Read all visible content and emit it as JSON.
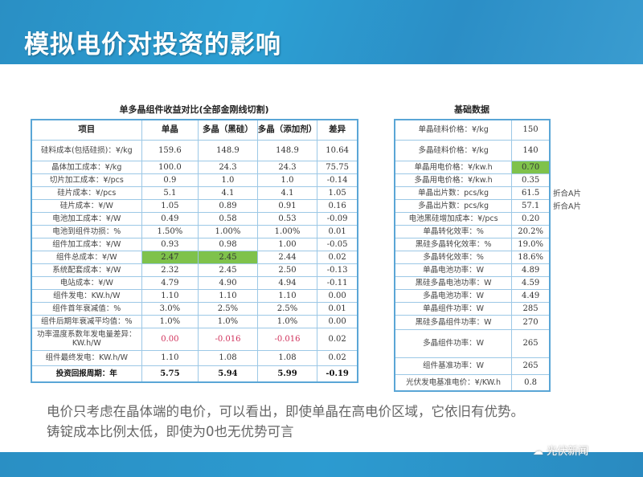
{
  "title": "模拟电价对投资的影响",
  "left_table": {
    "caption": "单多晶组件收益对比(全部金刚线切割)",
    "headers": [
      "项目",
      "单晶",
      "多晶（黑硅）",
      "多晶（添加剂）",
      "差异"
    ],
    "rows": [
      [
        "硅料成本(包括硅损)：¥/kg",
        "159.6",
        "148.9",
        "148.9",
        "10.64"
      ],
      [
        "晶体加工成本：¥/kg",
        "100.0",
        "24.3",
        "24.3",
        "75.75"
      ],
      [
        "切片加工成本：¥/pcs",
        "0.9",
        "1.0",
        "1.0",
        "-0.14"
      ],
      [
        "硅片成本：¥/pcs",
        "5.1",
        "4.1",
        "4.1",
        "1.05"
      ],
      [
        "硅片成本：¥/W",
        "1.05",
        "0.89",
        "0.91",
        "0.16"
      ],
      [
        "电池加工成本：¥/W",
        "0.49",
        "0.58",
        "0.53",
        "-0.09"
      ],
      [
        "电池到组件功损：%",
        "1.50%",
        "1.00%",
        "1.00%",
        "0.01"
      ],
      [
        "组件加工成本：¥/W",
        "0.93",
        "0.98",
        "1.00",
        "-0.05"
      ],
      [
        "组件总成本：¥/W",
        "2.47",
        "2.45",
        "2.44",
        "0.02"
      ],
      [
        "系统配套成本：¥/W",
        "2.32",
        "2.45",
        "2.50",
        "-0.13"
      ],
      [
        "电站成本：¥/W",
        "4.79",
        "4.90",
        "4.94",
        "-0.11"
      ],
      [
        "组件发电：KW.h/W",
        "1.10",
        "1.10",
        "1.10",
        "0.00"
      ],
      [
        "组件首年衰减值：%",
        "3.0%",
        "2.5%",
        "2.5%",
        "0.01"
      ],
      [
        "组件后期年衰减平均值：%",
        "1.0%",
        "1.0%",
        "1.0%",
        "0.00"
      ],
      [
        "功率温度系数年发电量差异：KW.h/W",
        "0.00",
        "-0.016",
        "-0.016",
        "0.02"
      ],
      [
        "组件最终发电：KW.h/W",
        "1.10",
        "1.08",
        "1.08",
        "0.02"
      ],
      [
        "投资回报周期：年",
        "5.75",
        "5.94",
        "5.99",
        "-0.19"
      ]
    ]
  },
  "right_table": {
    "caption": "基础数据",
    "rows": [
      [
        "单晶硅料价格：¥/kg",
        "150",
        ""
      ],
      [
        "多晶硅料价格：¥/kg",
        "140",
        ""
      ],
      [
        "单晶用电价格：¥/kw.h",
        "0.70",
        ""
      ],
      [
        "多晶用电价格：¥/kw.h",
        "0.35",
        ""
      ],
      [
        "单晶出片数：pcs/kg",
        "61.5",
        "折合A片"
      ],
      [
        "多晶出片数：pcs/kg",
        "57.1",
        "折合A片"
      ],
      [
        "电池黑硅增加成本：¥/pcs",
        "0.20",
        ""
      ],
      [
        "单晶转化效率：%",
        "20.2%",
        ""
      ],
      [
        "黑硅多晶转化效率：%",
        "19.0%",
        ""
      ],
      [
        "多晶转化效率：%",
        "18.6%",
        ""
      ],
      [
        "单晶电池功率：W",
        "4.89",
        ""
      ],
      [
        "黑硅多晶电池功率：W",
        "4.59",
        ""
      ],
      [
        "多晶电池功率：W",
        "4.49",
        ""
      ],
      [
        "单晶组件功率：W",
        "285",
        ""
      ],
      [
        "黑硅多晶组件功率：W",
        "270",
        ""
      ],
      [
        "多晶组件功率：W",
        "265",
        ""
      ],
      [
        "组件基准功率：W",
        "265",
        ""
      ],
      [
        "光伏发电基准电价：¥/KW.h",
        "0.8",
        ""
      ]
    ]
  },
  "description": [
    "电价只考虑在晶体端的电价，可以看出，即使单晶在高电价区域，它依旧有优势。",
    "铸锭成本比例太低，即使为0也无优势可言"
  ],
  "watermark": "光伏新闻",
  "colors": {
    "header": "#2c9bd0",
    "highlight": "#7fc24b",
    "negative": "#d0305a"
  }
}
